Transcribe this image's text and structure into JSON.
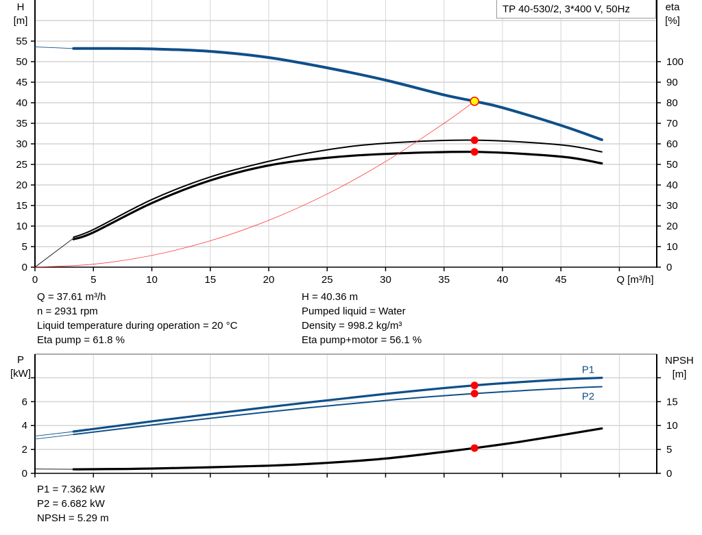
{
  "chart_data": [
    {
      "type": "line",
      "title": "TP 40-530/2, 3*400 V, 50Hz",
      "xlabel": "Q [m³/h]",
      "ylabel_left": [
        "H",
        "[m]"
      ],
      "ylabel_right": [
        "eta",
        "[%]"
      ],
      "xlim": [
        0,
        53.2
      ],
      "ylim_left": [
        0,
        65
      ],
      "ylim_right": [
        0,
        130
      ],
      "grid": true,
      "x_ticks": [
        "0",
        "5",
        "10",
        "15",
        "20",
        "25",
        "30",
        "35",
        "40",
        "45"
      ],
      "y_ticks_left": [
        "0",
        "5",
        "10",
        "15",
        "20",
        "25",
        "30",
        "35",
        "40",
        "45",
        "50",
        "55"
      ],
      "y_ticks_right": [
        "0",
        "10",
        "20",
        "30",
        "40",
        "50",
        "60",
        "70",
        "80",
        "90",
        "100"
      ],
      "series": [
        {
          "key": "H",
          "axis": "left",
          "color": "#0f4f8a",
          "x": [
            3.3,
            7,
            10,
            15,
            20,
            25,
            30,
            35,
            37.61,
            40,
            45,
            48.5
          ],
          "y": [
            53.2,
            53.2,
            53.1,
            52.5,
            51,
            48.5,
            45.5,
            41.9,
            40.36,
            38.8,
            34.5,
            31
          ]
        },
        {
          "key": "H-extension",
          "axis": "left",
          "color": "#0f4f8a",
          "x": [
            0,
            3.3
          ],
          "y": [
            53.6,
            53.2
          ]
        },
        {
          "key": "Eta pump",
          "axis": "right",
          "color": "#000000",
          "x": [
            3.3,
            5,
            10,
            15,
            20,
            25,
            30,
            37.61,
            45,
            48.5
          ],
          "y": [
            14.6,
            18.3,
            32.9,
            43.9,
            51.5,
            57.1,
            60.3,
            61.8,
            59.5,
            56.1
          ]
        },
        {
          "key": "Eta pump+motor",
          "axis": "right",
          "color": "#000000",
          "x": [
            3.3,
            5,
            10,
            15,
            20,
            25,
            30,
            37.61,
            45,
            48.5
          ],
          "y": [
            13.6,
            16.9,
            31.2,
            42.2,
            49.5,
            53.2,
            55.1,
            56.1,
            53.8,
            50.5
          ]
        },
        {
          "key": "Eta-extension",
          "axis": "right",
          "color": "#000000",
          "x": [
            0,
            3.3
          ],
          "y": [
            0,
            14.1
          ]
        },
        {
          "key": "System curve",
          "axis": "left",
          "color": "#ff3030",
          "x": [
            0,
            5,
            10,
            15,
            20,
            25,
            30,
            35,
            37.61
          ],
          "y": [
            0,
            0.71,
            2.85,
            6.42,
            11.4,
            17.8,
            25.7,
            35,
            40.36
          ]
        }
      ],
      "markers": [
        {
          "type": "duty-point",
          "x": 37.61,
          "y": 40.36,
          "axis": "left",
          "fill": "#ffff00",
          "stroke": "#ff0000"
        },
        {
          "type": "point",
          "x": 37.61,
          "y": 61.8,
          "axis": "right",
          "fill": "#ff0000"
        },
        {
          "type": "point",
          "x": 37.61,
          "y": 56.1,
          "axis": "right",
          "fill": "#ff0000"
        }
      ]
    },
    {
      "type": "line",
      "xlabel": "",
      "ylabel_left": [
        "P",
        "[kW]"
      ],
      "ylabel_right": [
        "NPSH",
        "[m]"
      ],
      "xlim": [
        0,
        53.2
      ],
      "ylim_left": [
        0,
        8.6
      ],
      "ylim_right": [
        0,
        21.5
      ],
      "grid": true,
      "y_ticks_left": [
        "0",
        "2",
        "4",
        "6",
        ""
      ],
      "y_ticks_right": [
        "0",
        "5",
        "10",
        "15",
        ""
      ],
      "series": [
        {
          "name": "P1",
          "axis": "left",
          "color": "#0f4f8a",
          "x": [
            3.3,
            10,
            20,
            30,
            37.61,
            45,
            48.5
          ],
          "y": [
            3.5,
            4.35,
            5.55,
            6.65,
            7.362,
            7.85,
            8.0
          ]
        },
        {
          "key": "P1-extension",
          "axis": "left",
          "color": "#0f4f8a",
          "x": [
            0,
            3.3
          ],
          "y": [
            3.12,
            3.5
          ]
        },
        {
          "name": "P2",
          "axis": "left",
          "color": "#0f4f8a",
          "x": [
            3.3,
            10,
            20,
            30,
            37.61,
            45,
            48.5
          ],
          "y": [
            3.25,
            4.05,
            5.15,
            6.1,
            6.682,
            7.1,
            7.25
          ]
        },
        {
          "key": "P2-extension",
          "axis": "left",
          "color": "#0f4f8a",
          "x": [
            0,
            3.3
          ],
          "y": [
            2.87,
            3.25
          ]
        },
        {
          "key": "NPSH",
          "axis": "right",
          "color": "#000000",
          "x": [
            3.3,
            10,
            20,
            25,
            30,
            35,
            37.61,
            42,
            48.5
          ],
          "y": [
            0.85,
            1.0,
            1.6,
            2.2,
            3.1,
            4.5,
            5.29,
            6.8,
            9.4
          ]
        },
        {
          "key": "NPSH-extension",
          "axis": "right",
          "color": "#000000",
          "x": [
            0,
            3.3
          ],
          "y": [
            0.9,
            0.85
          ]
        }
      ],
      "markers": [
        {
          "type": "point",
          "x": 37.61,
          "y": 7.362,
          "axis": "left",
          "fill": "#ff0000"
        },
        {
          "type": "point",
          "x": 37.61,
          "y": 6.682,
          "axis": "left",
          "fill": "#ff0000"
        },
        {
          "type": "point",
          "x": 37.61,
          "y": 5.29,
          "axis": "right",
          "fill": "#ff0000"
        }
      ]
    }
  ],
  "info_top_left": [
    "Q = 37.61 m³/h",
    "n = 2931 rpm",
    "Liquid temperature during operation = 20 °C",
    "Eta pump = 61.8 %"
  ],
  "info_top_right": [
    "H = 40.36 m",
    "Pumped liquid = Water",
    "Density = 998.2 kg/m³",
    "Eta pump+motor = 56.1 %"
  ],
  "info_bottom": [
    "P1 = 7.362 kW",
    "P2 = 6.682 kW",
    "NPSH = 5.29 m"
  ]
}
